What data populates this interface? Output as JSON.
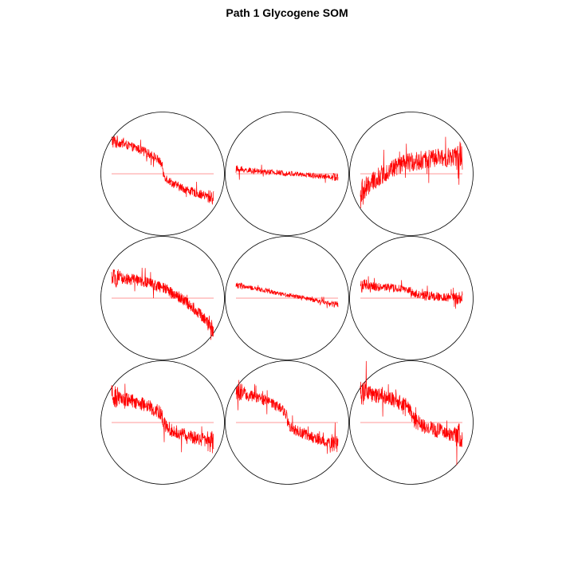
{
  "chart_data": {
    "type": "line",
    "title": "Path 1 Glycogene SOM",
    "grid_rows": 3,
    "grid_cols": 3,
    "grid": false,
    "line_color": "#ff0000",
    "circle_color": "#000000",
    "reference_line_color": "#ff0000",
    "y_range": [
      -1,
      1
    ],
    "units": [
      {
        "row": 1,
        "col": 1,
        "start": 0.75,
        "end": -0.55,
        "shape": "s-curve",
        "noise": 0.1
      },
      {
        "row": 1,
        "col": 2,
        "start": 0.1,
        "end": -0.08,
        "shape": "flat",
        "noise": 0.06
      },
      {
        "row": 1,
        "col": 3,
        "start": -0.5,
        "end": 0.4,
        "shape": "rising-s",
        "noise": 0.22
      },
      {
        "row": 2,
        "col": 1,
        "start": 0.45,
        "end": -0.7,
        "shape": "concave-drop",
        "noise": 0.13
      },
      {
        "row": 2,
        "col": 2,
        "start": 0.3,
        "end": -0.15,
        "shape": "linear",
        "noise": 0.05
      },
      {
        "row": 2,
        "col": 3,
        "start": 0.28,
        "end": 0.0,
        "shape": "s-curve",
        "noise": 0.1
      },
      {
        "row": 3,
        "col": 1,
        "start": 0.6,
        "end": -0.45,
        "shape": "s-curve",
        "noise": 0.16
      },
      {
        "row": 3,
        "col": 2,
        "start": 0.7,
        "end": -0.5,
        "shape": "s-curve",
        "noise": 0.13
      },
      {
        "row": 3,
        "col": 3,
        "start": 0.7,
        "end": -0.3,
        "shape": "s-curve",
        "noise": 0.18
      }
    ]
  }
}
